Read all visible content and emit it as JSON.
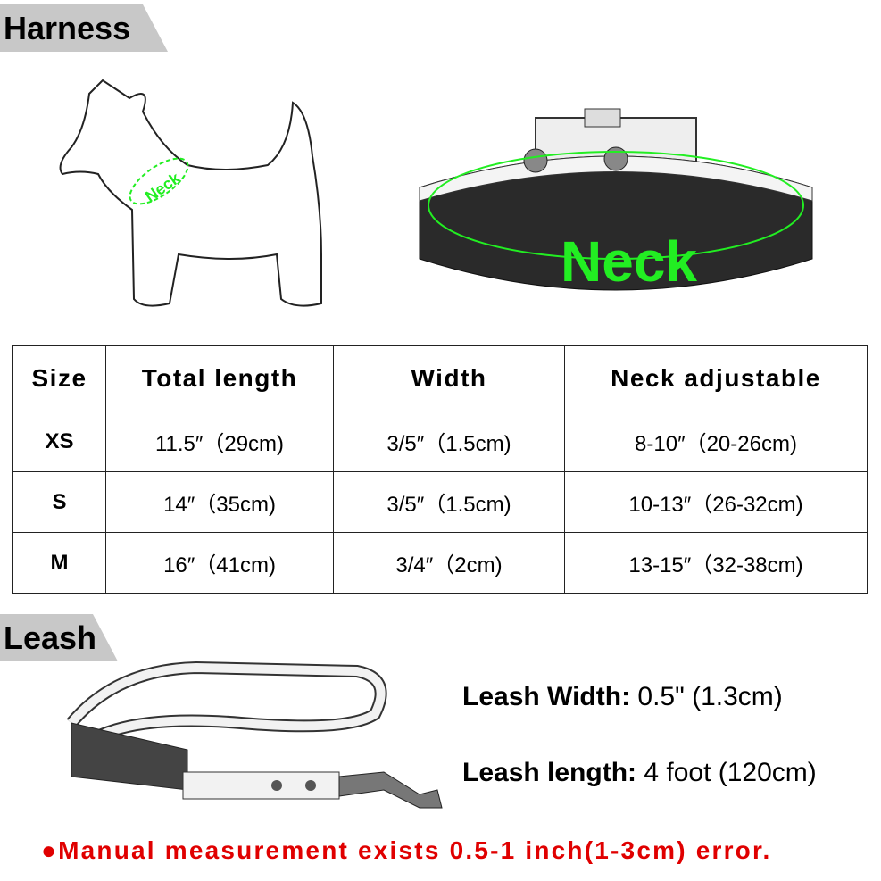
{
  "harness_label": "Harness",
  "dog_neck_label": "Neck",
  "collar_neck_label": "Neck",
  "accent_color": "#22ee22",
  "table": {
    "headers": [
      "Size",
      "Total length",
      "Width",
      "Neck adjustable"
    ],
    "rows": [
      [
        "XS",
        "11.5″（29cm)",
        "3/5″（1.5cm)",
        "8-10″（20-26cm)"
      ],
      [
        "S",
        "14″（35cm)",
        "3/5″（1.5cm)",
        "10-13″（26-32cm)"
      ],
      [
        "M",
        "16″（41cm)",
        "3/4″（2cm)",
        "13-15″（32-38cm)"
      ]
    ]
  },
  "leash_label": "Leash",
  "leash_specs": [
    {
      "label": "Leash Width:",
      "value": " 0.5\" (1.3cm)"
    },
    {
      "label": "Leash length:",
      "value": " 4 foot (120cm)"
    }
  ],
  "note": "●Manual measurement exists 0.5-1 inch(1-3cm) error.",
  "note_color": "#e00000"
}
